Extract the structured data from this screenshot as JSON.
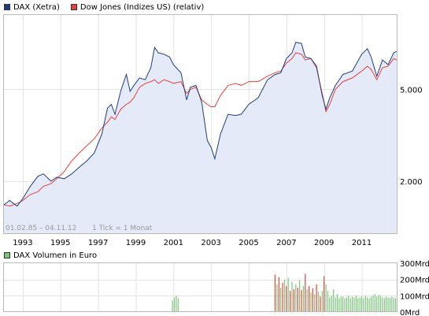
{
  "legend_main": [
    {
      "label": "DAX (Xetra)",
      "color": "#1f3d7a"
    },
    {
      "label": "Dow Jones (Indizes US) (relativ)",
      "color": "#e8413c"
    }
  ],
  "legend_volume": [
    {
      "label": "DAX Volumen in Euro",
      "color": "#7cc67c"
    }
  ],
  "range_label": "01.02.85 – 04.11.12",
  "tick_label": "1 Tick = 1 Monat",
  "chart_data": [
    {
      "type": "line",
      "scale": "log",
      "x_ticks": [
        "1993",
        "1995",
        "1997",
        "1999",
        "2001",
        "2003",
        "2005",
        "2007",
        "2009",
        "2011"
      ],
      "y_ticks": [
        {
          "value": 2000,
          "label": "2.000"
        },
        {
          "value": 5000,
          "label": "5.000"
        }
      ],
      "xlim": [
        1992.0,
        2012.9
      ],
      "ylim": [
        1180,
        10500
      ],
      "grid": true,
      "series": [
        {
          "name": "DAX (Xetra)",
          "color": "#1f3d7a",
          "fill": "#e4eaf7",
          "x": [
            1992.0,
            1992.3,
            1992.7,
            1993.0,
            1993.4,
            1993.8,
            1994.1,
            1994.5,
            1994.8,
            1995.2,
            1995.6,
            1996.0,
            1996.4,
            1996.8,
            1997.2,
            1997.5,
            1997.7,
            1997.9,
            1998.2,
            1998.5,
            1998.7,
            1998.9,
            1999.2,
            1999.5,
            1999.8,
            2000.0,
            2000.2,
            2000.5,
            2000.8,
            2001.0,
            2001.4,
            2001.7,
            2001.9,
            2002.2,
            2002.5,
            2002.8,
            2003.0,
            2003.2,
            2003.5,
            2003.9,
            2004.3,
            2004.6,
            2005.0,
            2005.5,
            2006.0,
            2006.4,
            2006.7,
            2007.0,
            2007.3,
            2007.5,
            2007.8,
            2008.0,
            2008.3,
            2008.6,
            2008.9,
            2009.1,
            2009.3,
            2009.6,
            2010.0,
            2010.5,
            2011.0,
            2011.3,
            2011.5,
            2011.8,
            2012.1,
            2012.4,
            2012.7,
            2012.85
          ],
          "y": [
            1580,
            1650,
            1560,
            1680,
            1900,
            2100,
            2150,
            2000,
            2080,
            2050,
            2150,
            2300,
            2450,
            2650,
            3200,
            4150,
            4300,
            3900,
            4900,
            5800,
            4900,
            5200,
            5600,
            5500,
            6200,
            7600,
            7200,
            7100,
            6900,
            6400,
            5900,
            4500,
            5100,
            5200,
            4400,
            3000,
            2800,
            2500,
            3200,
            3900,
            3850,
            3900,
            4300,
            4600,
            5500,
            5800,
            5900,
            6800,
            7200,
            8000,
            7900,
            6900,
            6800,
            6300,
            4700,
            4100,
            4600,
            5200,
            5800,
            6000,
            7100,
            7500,
            6900,
            5700,
            6700,
            6400,
            7200,
            7300
          ]
        },
        {
          "name": "Dow Jones (Indizes US) (relativ)",
          "color": "#e8413c",
          "x": [
            1992.0,
            1992.3,
            1992.7,
            1993.0,
            1993.4,
            1993.8,
            1994.1,
            1994.5,
            1994.8,
            1995.2,
            1995.6,
            1996.0,
            1996.4,
            1996.8,
            1997.2,
            1997.5,
            1997.7,
            1997.9,
            1998.2,
            1998.5,
            1998.7,
            1998.9,
            1999.2,
            1999.5,
            1999.8,
            2000.0,
            2000.2,
            2000.5,
            2000.8,
            2001.0,
            2001.4,
            2001.7,
            2001.9,
            2002.2,
            2002.5,
            2002.8,
            2003.0,
            2003.2,
            2003.5,
            2003.9,
            2004.3,
            2004.6,
            2005.0,
            2005.5,
            2006.0,
            2006.4,
            2006.7,
            2007.0,
            2007.3,
            2007.5,
            2007.8,
            2008.0,
            2008.3,
            2008.6,
            2008.9,
            2009.1,
            2009.3,
            2009.6,
            2010.0,
            2010.5,
            2011.0,
            2011.3,
            2011.5,
            2011.8,
            2012.1,
            2012.4,
            2012.7,
            2012.85
          ],
          "y": [
            1580,
            1560,
            1600,
            1650,
            1750,
            1800,
            1900,
            1950,
            2050,
            2200,
            2450,
            2650,
            2850,
            3050,
            3400,
            3600,
            3800,
            3700,
            4100,
            4300,
            4400,
            4600,
            5100,
            5300,
            5400,
            5500,
            5300,
            5500,
            5400,
            5300,
            5400,
            4800,
            5000,
            5100,
            4500,
            4300,
            4200,
            4200,
            4700,
            5200,
            5300,
            5200,
            5400,
            5400,
            5700,
            5900,
            6000,
            6500,
            6800,
            7200,
            7100,
            6700,
            6800,
            6200,
            4800,
            4000,
            4300,
            5000,
            5400,
            5600,
            6000,
            6300,
            6100,
            5500,
            6200,
            6300,
            6800,
            6700
          ]
        }
      ]
    },
    {
      "type": "bar",
      "title": "DAX Volumen in Euro",
      "y_ticks": [
        "0Mrd",
        "100Mrd",
        "200Mrd",
        "300Mrd"
      ],
      "ylim": [
        0,
        300
      ],
      "xlim": [
        1992.0,
        2012.9
      ],
      "series": [
        {
          "name": "DAX Volumen in Euro",
          "x": [
            2000.95,
            2001.05,
            2001.15,
            2001.25,
            2006.4,
            2006.5,
            2006.6,
            2006.7,
            2006.8,
            2006.9,
            2007.0,
            2007.1,
            2007.2,
            2007.3,
            2007.4,
            2007.5,
            2007.6,
            2007.7,
            2007.8,
            2007.9,
            2008.0,
            2008.1,
            2008.2,
            2008.3,
            2008.4,
            2008.5,
            2008.6,
            2008.7,
            2008.8,
            2008.9,
            2009.0,
            2009.1,
            2009.2,
            2009.3,
            2009.4,
            2009.5,
            2009.6,
            2009.7,
            2009.8,
            2009.9,
            2010.0,
            2010.1,
            2010.2,
            2010.3,
            2010.4,
            2010.5,
            2010.6,
            2010.7,
            2010.8,
            2010.9,
            2011.0,
            2011.1,
            2011.2,
            2011.3,
            2011.4,
            2011.5,
            2011.6,
            2011.7,
            2011.8,
            2011.9,
            2012.0,
            2012.1,
            2012.2,
            2012.3,
            2012.4,
            2012.5,
            2012.6,
            2012.7,
            2012.8
          ],
          "values": [
            70,
            90,
            100,
            85,
            230,
            170,
            215,
            150,
            180,
            200,
            160,
            210,
            130,
            185,
            140,
            170,
            150,
            195,
            135,
            160,
            235,
            140,
            160,
            120,
            145,
            110,
            170,
            125,
            95,
            130,
            220,
            170,
            130,
            90,
            100,
            140,
            90,
            110,
            85,
            95,
            95,
            85,
            90,
            100,
            85,
            95,
            90,
            100,
            85,
            90,
            95,
            85,
            100,
            90,
            85,
            95,
            100,
            110,
            95,
            105,
            100,
            90,
            85,
            95,
            90,
            85,
            95,
            90,
            85
          ]
        }
      ]
    }
  ]
}
